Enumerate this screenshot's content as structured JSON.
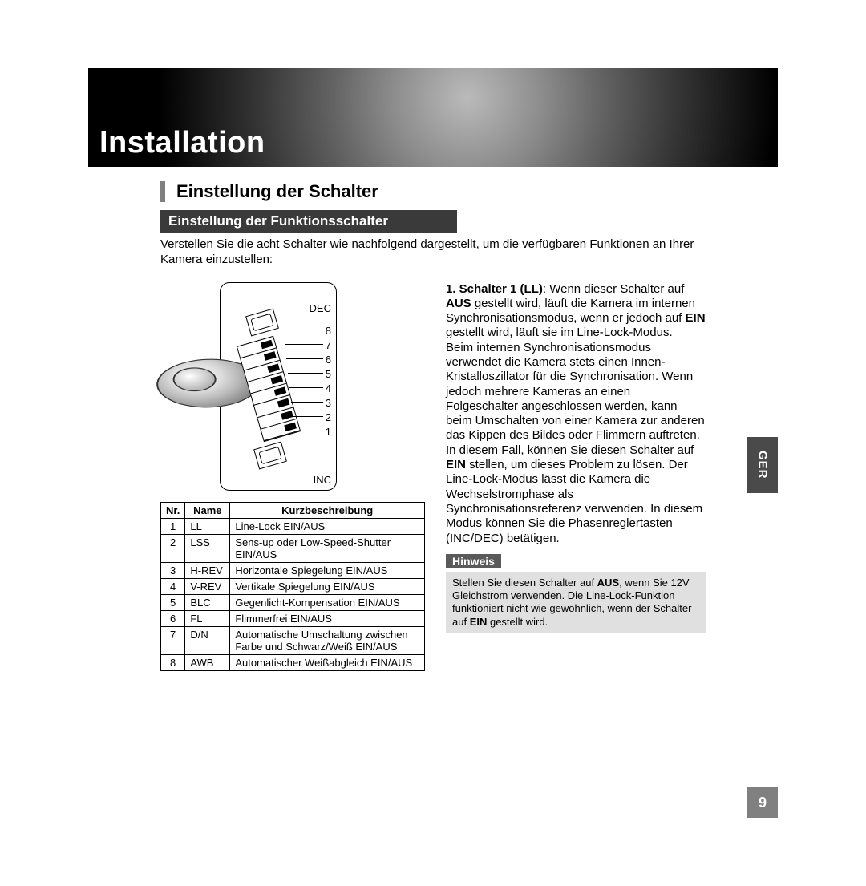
{
  "page": {
    "chapter_title": "Installation",
    "section_title": "Einstellung der Schalter",
    "subsection_bar": "Einstellung der Funktionsschalter",
    "intro": "Verstellen Sie die acht Schalter wie nachfolgend dargestellt, um die verfügbaren Funktionen an Ihrer Kamera einzustellen:",
    "lang_tab": "GER",
    "page_number": "9"
  },
  "figure": {
    "label_top": "DEC",
    "label_bottom": "INC",
    "numbers": [
      "8",
      "7",
      "6",
      "5",
      "4",
      "3",
      "2",
      "1"
    ]
  },
  "table": {
    "headers": {
      "nr": "Nr.",
      "name": "Name",
      "desc": "Kurzbeschreibung"
    },
    "rows": [
      {
        "nr": "1",
        "name": "LL",
        "desc": "Line-Lock EIN/AUS"
      },
      {
        "nr": "2",
        "name": "LSS",
        "desc": "Sens-up oder Low-Speed-Shutter EIN/AUS"
      },
      {
        "nr": "3",
        "name": "H-REV",
        "desc": "Horizontale Spiegelung EIN/AUS"
      },
      {
        "nr": "4",
        "name": "V-REV",
        "desc": "Vertikale Spiegelung EIN/AUS"
      },
      {
        "nr": "5",
        "name": "BLC",
        "desc": "Gegenlicht-Kompensation EIN/AUS"
      },
      {
        "nr": "6",
        "name": "FL",
        "desc": "Flimmerfrei EIN/AUS"
      },
      {
        "nr": "7",
        "name": "D/N",
        "desc": "Automatische Umschaltung zwischen Farbe und Schwarz/Weiß EIN/AUS"
      },
      {
        "nr": "8",
        "name": "AWB",
        "desc": "Automatischer Weißabgleich EIN/AUS"
      }
    ]
  },
  "switch1": {
    "lead_bold": "1. Schalter 1 (LL)",
    "lead_tail": ": Wenn dieser Schalter auf ",
    "aus": "AUS",
    "mid1": " gestellt wird, läuft die Kamera im internen Synchronisationsmodus, wenn er jedoch auf ",
    "ein": "EIN",
    "mid2": " gestellt wird, läuft sie im Line-Lock-Modus.",
    "para2": "Beim internen Synchronisationsmodus verwendet die Kamera stets einen Innen-Kristalloszillator für die Synchronisation. Wenn jedoch mehrere Kameras an einen Folgeschalter angeschlossen werden, kann beim Umschalten von einer Kamera zur anderen das Kippen des Bildes oder Flimmern auftreten. In diesem Fall, können Sie diesen Schalter auf ",
    "ein2": "EIN",
    "para2b": " stellen, um dieses Problem zu lösen. Der Line-Lock-Modus lässt die Kamera die Wechselstromphase als Synchronisationsreferenz verwenden. In diesem Modus können Sie die Phasenreglertasten (INC/DEC) betätigen."
  },
  "hinweis": {
    "label": "Hinweis",
    "pre": "Stellen Sie diesen Schalter auf ",
    "aus": "AUS",
    "mid": ", wenn Sie 12V Gleichstrom verwenden. Die Line-Lock-Funktion funktioniert nicht wie gewöhnlich, wenn der Schalter auf ",
    "ein": "EIN",
    "post": " gestellt wird."
  },
  "colors": {
    "banner_bg": "#000000",
    "banner_text": "#ffffff",
    "section_bar": "#808080",
    "sub_bar_bg": "#3a3a3a",
    "hinweis_label_bg": "#5a5a5a",
    "hinweis_box_bg": "#e0e0e0",
    "side_tab_bg": "#4a4a4a",
    "pagenum_bg": "#808080"
  }
}
